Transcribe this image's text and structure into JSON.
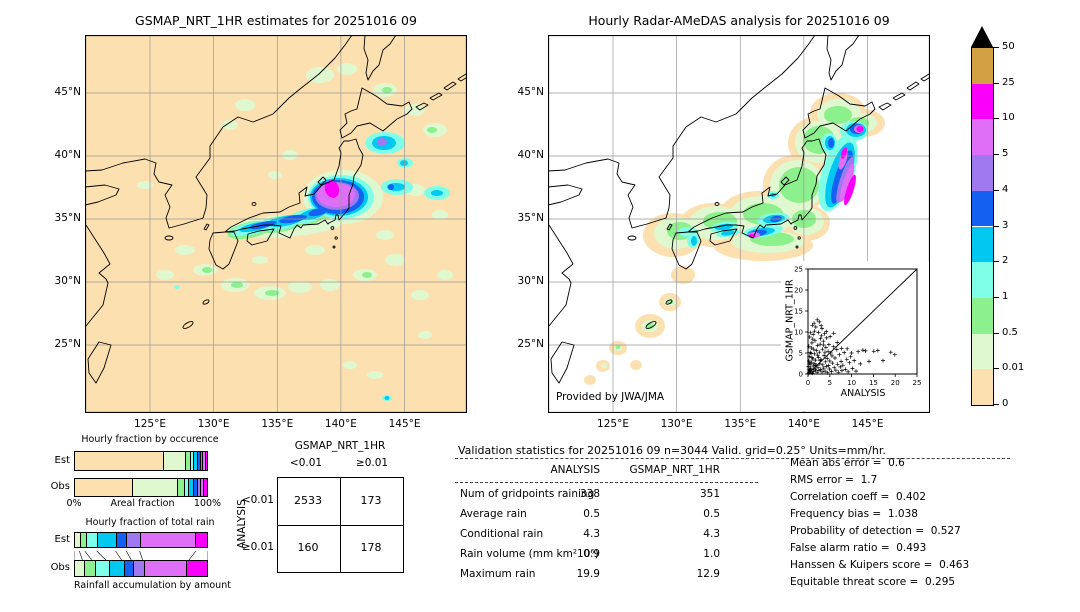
{
  "colorbar": {
    "labels": [
      "50",
      "25",
      "10",
      "5",
      "4",
      "3",
      "2",
      "1",
      "0.5",
      "0.01",
      "0"
    ],
    "colors": [
      "#d2a144",
      "#fa00fa",
      "#e06ff8",
      "#a078f0",
      "#1460f0",
      "#00c8f0",
      "#80ffe8",
      "#8cf08c",
      "#dff8d0",
      "#fce0b0"
    ],
    "overflow_color": "#000000"
  },
  "chart_data": [
    {
      "type": "heatmap",
      "title": "GSMAP_NRT_1HR estimates for 20251016 09",
      "units": "mm/hr",
      "lon_range": [
        120,
        150
      ],
      "lat_range": [
        20,
        50
      ],
      "x_ticks": [
        "125°E",
        "130°E",
        "135°E",
        "140°E",
        "145°E"
      ],
      "y_ticks": [
        "45°N",
        "40°N",
        "35°N",
        "30°N",
        "25°N"
      ],
      "description": "GSMaP satellite hourly rain estimates over Japan; heavy rain band 5-25 mm/hr over central/eastern Honshu near 138-141E 36-38N with cyan-blue band along the Pacific coast and light rain patches offshore"
    },
    {
      "type": "heatmap",
      "title": "Hourly Radar-AMeDAS analysis for 20251016 09",
      "credit": "Provided by JWA/JMA",
      "units": "mm/hr",
      "lon_range": [
        120,
        150
      ],
      "lat_range": [
        20,
        50
      ],
      "x_ticks": [
        "125°E",
        "130°E",
        "135°E",
        "140°E",
        "145°E"
      ],
      "y_ticks": [
        "45°N",
        "40°N",
        "35°N",
        "30°N",
        "25°N"
      ],
      "description": "Radar-AMeDAS analysed rainfall inside radar coverage (tan/green band along the archipelago); bands above 10 mm/hr along Pacific coast of Tohoku and southeastern Hokkaido and near the Tokai coast"
    },
    {
      "type": "scatter",
      "xlabel": "ANALYSIS",
      "ylabel": "GSMAP_NRT_1HR",
      "xlim": [
        0,
        25
      ],
      "ylim": [
        0,
        25
      ],
      "ticks": [
        "0",
        "5",
        "10",
        "15",
        "20",
        "25"
      ],
      "diagonal": true,
      "points": [
        [
          0.1,
          0.1
        ],
        [
          0.2,
          0.4
        ],
        [
          0.3,
          1.1
        ],
        [
          0.1,
          1.8
        ],
        [
          0.4,
          0.7
        ],
        [
          0.5,
          2.3
        ],
        [
          0.2,
          3.1
        ],
        [
          0.6,
          1.4
        ],
        [
          0.7,
          0.3
        ],
        [
          0.8,
          2.8
        ],
        [
          0.3,
          4.2
        ],
        [
          0.9,
          1.0
        ],
        [
          1.0,
          0.2
        ],
        [
          1.1,
          3.6
        ],
        [
          0.5,
          5.1
        ],
        [
          1.2,
          1.9
        ],
        [
          1.3,
          0.6
        ],
        [
          0.8,
          6.2
        ],
        [
          1.4,
          2.5
        ],
        [
          1.5,
          4.8
        ],
        [
          0.9,
          7.4
        ],
        [
          1.6,
          1.2
        ],
        [
          1.7,
          3.3
        ],
        [
          1.1,
          8.3
        ],
        [
          1.8,
          0.9
        ],
        [
          1.9,
          5.6
        ],
        [
          1.2,
          9.4
        ],
        [
          2.0,
          2.1
        ],
        [
          2.1,
          0.4
        ],
        [
          1.5,
          10.2
        ],
        [
          2.2,
          6.8
        ],
        [
          2.3,
          1.6
        ],
        [
          1.8,
          11.2
        ],
        [
          2.4,
          3.9
        ],
        [
          2.5,
          0.8
        ],
        [
          2.1,
          12.9
        ],
        [
          2.6,
          5.2
        ],
        [
          2.7,
          2.4
        ],
        [
          2.6,
          12.4
        ],
        [
          2.8,
          7.1
        ],
        [
          2.9,
          1.1
        ],
        [
          3.0,
          3.4
        ],
        [
          3.1,
          9.1
        ],
        [
          3.2,
          0.5
        ],
        [
          3.3,
          5.9
        ],
        [
          3.2,
          10.8
        ],
        [
          3.4,
          2.2
        ],
        [
          3.5,
          7.8
        ],
        [
          3.6,
          1.4
        ],
        [
          3.7,
          4.4
        ],
        [
          3.8,
          9.6
        ],
        [
          3.9,
          0.7
        ],
        [
          4.0,
          2.9
        ],
        [
          4.1,
          6.3
        ],
        [
          4.2,
          1.8
        ],
        [
          4.3,
          8.6
        ],
        [
          4.4,
          3.7
        ],
        [
          4.5,
          0.3
        ],
        [
          4.6,
          5.4
        ],
        [
          4.7,
          2.0
        ],
        [
          4.8,
          7.0
        ],
        [
          4.9,
          1.2
        ],
        [
          5.0,
          3.1
        ],
        [
          5.2,
          5.0
        ],
        [
          5.4,
          0.6
        ],
        [
          5.6,
          2.6
        ],
        [
          5.8,
          6.5
        ],
        [
          6.0,
          1.5
        ],
        [
          6.2,
          3.8
        ],
        [
          6.4,
          0.9
        ],
        [
          6.6,
          5.8
        ],
        [
          6.8,
          2.3
        ],
        [
          7.0,
          0.4
        ],
        [
          7.2,
          4.6
        ],
        [
          7.4,
          1.7
        ],
        [
          7.6,
          3.0
        ],
        [
          7.8,
          0.8
        ],
        [
          8.0,
          2.1
        ],
        [
          8.3,
          5.1
        ],
        [
          8.6,
          1.1
        ],
        [
          8.9,
          3.5
        ],
        [
          9.2,
          0.5
        ],
        [
          9.5,
          2.7
        ],
        [
          9.8,
          4.1
        ],
        [
          10.2,
          1.3
        ],
        [
          10.6,
          3.2
        ],
        [
          11.0,
          0.7
        ],
        [
          11.5,
          5.3
        ],
        [
          12.0,
          2.4
        ],
        [
          12.6,
          5.7
        ],
        [
          13.2,
          5.5
        ],
        [
          14.0,
          3.0
        ],
        [
          15.1,
          5.4
        ],
        [
          16.0,
          5.6
        ],
        [
          17.2,
          3.2
        ],
        [
          19.0,
          5.2
        ],
        [
          19.9,
          4.6
        ],
        [
          0.4,
          8.8
        ],
        [
          0.6,
          9.8
        ],
        [
          1.0,
          11.6
        ],
        [
          1.4,
          12.1
        ],
        [
          0.2,
          6.6
        ],
        [
          0.7,
          4.9
        ],
        [
          1.6,
          7.9
        ],
        [
          2.4,
          9.9
        ],
        [
          3.0,
          11.5
        ],
        [
          0.3,
          2.6
        ],
        [
          0.9,
          3.9
        ],
        [
          1.3,
          5.9
        ],
        [
          2.2,
          4.5
        ],
        [
          2.9,
          8.4
        ],
        [
          3.6,
          6.9
        ],
        [
          4.2,
          10.1
        ],
        [
          5.1,
          8.9
        ],
        [
          5.9,
          9.7
        ],
        [
          6.7,
          7.5
        ],
        [
          0.5,
          0.9
        ],
        [
          1.7,
          2.0
        ],
        [
          2.8,
          3.2
        ],
        [
          3.9,
          5.2
        ],
        [
          5.5,
          4.3
        ],
        [
          7.7,
          6.1
        ],
        [
          9.0,
          6.0
        ],
        [
          10.0,
          5.0
        ]
      ]
    },
    {
      "type": "bar",
      "title": "Hourly fraction by occurence",
      "orientation": "horizontal-stacked",
      "rows": [
        "Est",
        "Obs"
      ],
      "axis_left": "0%",
      "axis_label": "Areal fraction",
      "axis_right": "100%",
      "bins": [
        "0-0.01",
        "0.01-0.5",
        "0.5-1",
        "1-2",
        "2-3",
        "3-4",
        "4-5",
        "5-10",
        "10-25"
      ],
      "colors": [
        "#fce0b0",
        "#dff8d0",
        "#8cf08c",
        "#80ffe8",
        "#00c8f0",
        "#1460f0",
        "#a078f0",
        "#e06ff8",
        "#fa00fa"
      ],
      "est": [
        67,
        16,
        4,
        2.5,
        3,
        2.5,
        1.5,
        2,
        1.5
      ],
      "obs": [
        43,
        34,
        5.5,
        3.5,
        3.5,
        3,
        2.5,
        2,
        3
      ]
    },
    {
      "type": "bar",
      "title": "Hourly fraction of total rain",
      "caption": "Rainfall accumulation by amount",
      "orientation": "horizontal-stacked",
      "rows": [
        "Est",
        "Obs"
      ],
      "bins": [
        "0.01-0.5",
        "0.5-1",
        "1-2",
        "2-3",
        "3-4",
        "4-5",
        "5-10",
        "10-25"
      ],
      "colors": [
        "#dff8d0",
        "#8cf08c",
        "#80ffe8",
        "#00c8f0",
        "#1460f0",
        "#a078f0",
        "#e06ff8",
        "#fa00fa"
      ],
      "est": [
        4,
        4,
        9,
        14,
        8,
        10,
        42,
        9
      ],
      "obs": [
        7,
        8,
        11,
        11,
        7,
        8,
        32,
        16
      ]
    },
    {
      "type": "table",
      "col_title": "GSMAP_NRT_1HR",
      "row_title": "ANALYSIS",
      "col_labels": [
        "<0.01",
        "≥0.01"
      ],
      "row_labels": [
        "<0.01",
        "≥0.01"
      ],
      "values": [
        [
          "2533",
          "173"
        ],
        [
          "160",
          "178"
        ]
      ]
    },
    {
      "type": "table",
      "title": "Validation statistics for 20251016 09  n=3044 Valid. grid=0.25° Units=mm/hr.",
      "columns": [
        "ANALYSIS",
        "GSMAP_NRT_1HR"
      ],
      "rows": [
        [
          "Num of gridpoints raining",
          "338",
          "351"
        ],
        [
          "Average rain",
          "0.5",
          "0.5"
        ],
        [
          "Conditional rain",
          "4.3",
          "4.3"
        ],
        [
          "Rain volume (mm km²10⁶)",
          "0.9",
          "1.0"
        ],
        [
          "Maximum rain",
          "19.9",
          "12.9"
        ]
      ]
    },
    {
      "type": "table",
      "rows": [
        [
          "Mean abs error",
          "0.6"
        ],
        [
          "RMS error",
          "1.7"
        ],
        [
          "Correlation coeff",
          "0.402"
        ],
        [
          "Frequency bias",
          "1.038"
        ],
        [
          "Probability of detection",
          "0.527"
        ],
        [
          "False alarm ratio",
          "0.493"
        ],
        [
          "Hanssen & Kuipers score",
          "0.463"
        ],
        [
          "Equitable threat score",
          "0.295"
        ]
      ]
    }
  ]
}
